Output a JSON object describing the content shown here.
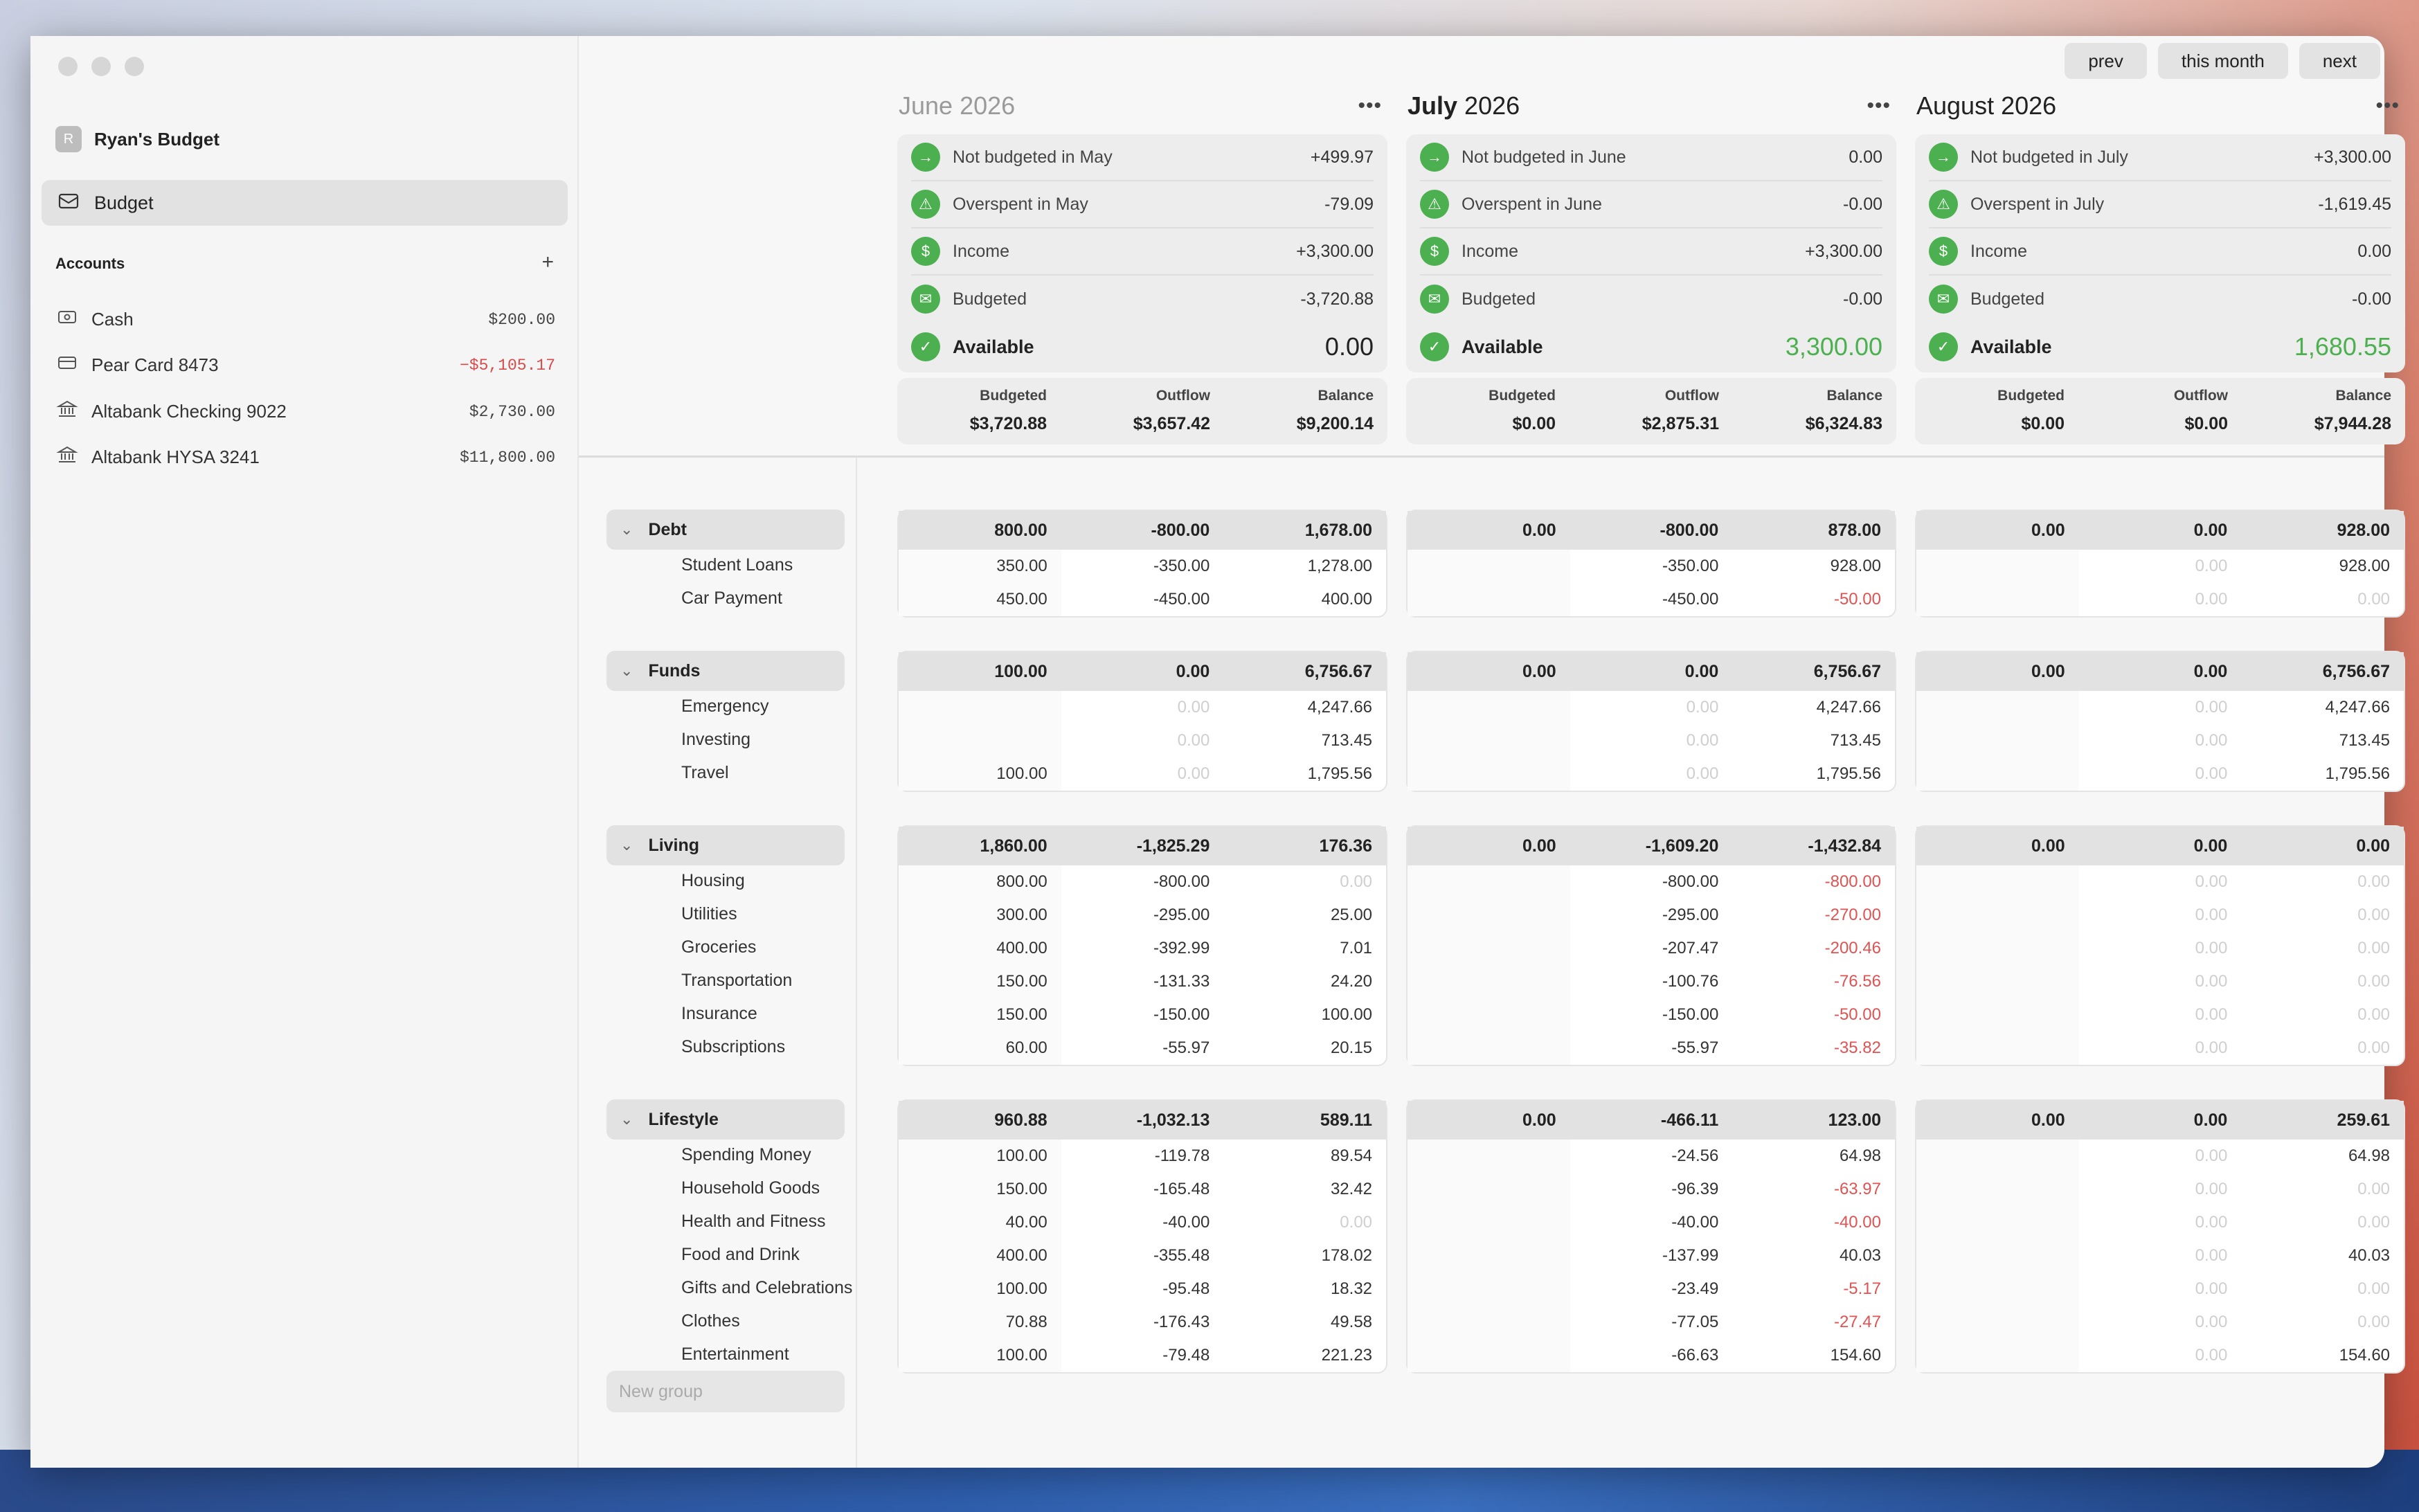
{
  "sidebar": {
    "budget_name": "Ryan's Budget",
    "avatar_letter": "R",
    "nav_budget": "Budget",
    "accounts_label": "Accounts",
    "add_label": "+",
    "accounts": [
      {
        "icon": "cash-icon",
        "name": "Cash",
        "amount": "$200.00",
        "neg": false
      },
      {
        "icon": "credit-card-icon",
        "name": "Pear Card 8473",
        "amount": "−$5,105.17",
        "neg": true
      },
      {
        "icon": "bank-icon",
        "name": "Altabank Checking 9022",
        "amount": "$2,730.00",
        "neg": false
      },
      {
        "icon": "bank-icon",
        "name": "Altabank HYSA 3241",
        "amount": "$11,800.00",
        "neg": false
      }
    ]
  },
  "toolbar": {
    "prev": "prev",
    "this_month": "this month",
    "next": "next"
  },
  "months": [
    {
      "bold": "",
      "rest": "June 2026",
      "past": true,
      "summary": [
        {
          "icon": "arrow-right-icon",
          "label": "Not budgeted in May",
          "value": "+499.97"
        },
        {
          "icon": "warning-icon",
          "label": "Overspent in May",
          "value": "-79.09"
        },
        {
          "icon": "income-icon",
          "label": "Income",
          "value": "+3,300.00"
        },
        {
          "icon": "envelope-icon",
          "label": "Budgeted",
          "value": "-3,720.88"
        }
      ],
      "available_label": "Available",
      "available": "0.00",
      "available_green": false,
      "totals": {
        "budgeted_h": "Budgeted",
        "outflow_h": "Outflow",
        "balance_h": "Balance",
        "budgeted": "$3,720.88",
        "outflow": "$3,657.42",
        "balance": "$9,200.14"
      }
    },
    {
      "bold": "July",
      "rest": " 2026",
      "past": false,
      "summary": [
        {
          "icon": "arrow-right-icon",
          "label": "Not budgeted in June",
          "value": "0.00"
        },
        {
          "icon": "warning-icon",
          "label": "Overspent in June",
          "value": "-0.00"
        },
        {
          "icon": "income-icon",
          "label": "Income",
          "value": "+3,300.00"
        },
        {
          "icon": "envelope-icon",
          "label": "Budgeted",
          "value": "-0.00"
        }
      ],
      "available_label": "Available",
      "available": "3,300.00",
      "available_green": true,
      "totals": {
        "budgeted_h": "Budgeted",
        "outflow_h": "Outflow",
        "balance_h": "Balance",
        "budgeted": "$0.00",
        "outflow": "$2,875.31",
        "balance": "$6,324.83"
      }
    },
    {
      "bold": "",
      "rest": "August 2026",
      "past": false,
      "summary": [
        {
          "icon": "arrow-right-icon",
          "label": "Not budgeted in July",
          "value": "+3,300.00"
        },
        {
          "icon": "warning-icon",
          "label": "Overspent in July",
          "value": "-1,619.45"
        },
        {
          "icon": "income-icon",
          "label": "Income",
          "value": "0.00"
        },
        {
          "icon": "envelope-icon",
          "label": "Budgeted",
          "value": "-0.00"
        }
      ],
      "available_label": "Available",
      "available": "1,680.55",
      "available_green": true,
      "totals": {
        "budgeted_h": "Budgeted",
        "outflow_h": "Outflow",
        "balance_h": "Balance",
        "budgeted": "$0.00",
        "outflow": "$0.00",
        "balance": "$7,944.28"
      }
    }
  ],
  "groups": [
    {
      "name": "Debt",
      "categories": [
        "Student Loans",
        "Car Payment"
      ],
      "months": [
        {
          "head": [
            "800.00",
            "-800.00",
            "1,678.00"
          ],
          "rows": [
            [
              "350.00",
              "-350.00",
              "1,278.00"
            ],
            [
              "450.00",
              "-450.00",
              "400.00"
            ]
          ]
        },
        {
          "head": [
            "0.00",
            "-800.00",
            "878.00"
          ],
          "rows": [
            [
              "",
              "-350.00",
              "928.00"
            ],
            [
              "",
              "-450.00",
              "-50.00"
            ]
          ]
        },
        {
          "head": [
            "0.00",
            "0.00",
            "928.00"
          ],
          "rows": [
            [
              "",
              "0.00",
              "928.00"
            ],
            [
              "",
              "0.00",
              "0.00"
            ]
          ]
        }
      ]
    },
    {
      "name": "Funds",
      "categories": [
        "Emergency",
        "Investing",
        "Travel"
      ],
      "months": [
        {
          "head": [
            "100.00",
            "0.00",
            "6,756.67"
          ],
          "rows": [
            [
              "",
              "0.00",
              "4,247.66"
            ],
            [
              "",
              "0.00",
              "713.45"
            ],
            [
              "100.00",
              "0.00",
              "1,795.56"
            ]
          ]
        },
        {
          "head": [
            "0.00",
            "0.00",
            "6,756.67"
          ],
          "rows": [
            [
              "",
              "0.00",
              "4,247.66"
            ],
            [
              "",
              "0.00",
              "713.45"
            ],
            [
              "",
              "0.00",
              "1,795.56"
            ]
          ]
        },
        {
          "head": [
            "0.00",
            "0.00",
            "6,756.67"
          ],
          "rows": [
            [
              "",
              "0.00",
              "4,247.66"
            ],
            [
              "",
              "0.00",
              "713.45"
            ],
            [
              "",
              "0.00",
              "1,795.56"
            ]
          ]
        }
      ]
    },
    {
      "name": "Living",
      "categories": [
        "Housing",
        "Utilities",
        "Groceries",
        "Transportation",
        "Insurance",
        "Subscriptions"
      ],
      "months": [
        {
          "head": [
            "1,860.00",
            "-1,825.29",
            "176.36"
          ],
          "rows": [
            [
              "800.00",
              "-800.00",
              "0.00"
            ],
            [
              "300.00",
              "-295.00",
              "25.00"
            ],
            [
              "400.00",
              "-392.99",
              "7.01"
            ],
            [
              "150.00",
              "-131.33",
              "24.20"
            ],
            [
              "150.00",
              "-150.00",
              "100.00"
            ],
            [
              "60.00",
              "-55.97",
              "20.15"
            ]
          ]
        },
        {
          "head": [
            "0.00",
            "-1,609.20",
            "-1,432.84"
          ],
          "rows": [
            [
              "",
              "-800.00",
              "-800.00"
            ],
            [
              "",
              "-295.00",
              "-270.00"
            ],
            [
              "",
              "-207.47",
              "-200.46"
            ],
            [
              "",
              "-100.76",
              "-76.56"
            ],
            [
              "",
              "-150.00",
              "-50.00"
            ],
            [
              "",
              "-55.97",
              "-35.82"
            ]
          ]
        },
        {
          "head": [
            "0.00",
            "0.00",
            "0.00"
          ],
          "rows": [
            [
              "",
              "0.00",
              "0.00"
            ],
            [
              "",
              "0.00",
              "0.00"
            ],
            [
              "",
              "0.00",
              "0.00"
            ],
            [
              "",
              "0.00",
              "0.00"
            ],
            [
              "",
              "0.00",
              "0.00"
            ],
            [
              "",
              "0.00",
              "0.00"
            ]
          ]
        }
      ]
    },
    {
      "name": "Lifestyle",
      "categories": [
        "Spending Money",
        "Household Goods",
        "Health and Fitness",
        "Food and Drink",
        "Gifts and Celebrations",
        "Clothes",
        "Entertainment"
      ],
      "months": [
        {
          "head": [
            "960.88",
            "-1,032.13",
            "589.11"
          ],
          "rows": [
            [
              "100.00",
              "-119.78",
              "89.54"
            ],
            [
              "150.00",
              "-165.48",
              "32.42"
            ],
            [
              "40.00",
              "-40.00",
              "0.00"
            ],
            [
              "400.00",
              "-355.48",
              "178.02"
            ],
            [
              "100.00",
              "-95.48",
              "18.32"
            ],
            [
              "70.88",
              "-176.43",
              "49.58"
            ],
            [
              "100.00",
              "-79.48",
              "221.23"
            ]
          ]
        },
        {
          "head": [
            "0.00",
            "-466.11",
            "123.00"
          ],
          "rows": [
            [
              "",
              "-24.56",
              "64.98"
            ],
            [
              "",
              "-96.39",
              "-63.97"
            ],
            [
              "",
              "-40.00",
              "-40.00"
            ],
            [
              "",
              "-137.99",
              "40.03"
            ],
            [
              "",
              "-23.49",
              "-5.17"
            ],
            [
              "",
              "-77.05",
              "-27.47"
            ],
            [
              "",
              "-66.63",
              "154.60"
            ]
          ]
        },
        {
          "head": [
            "0.00",
            "0.00",
            "259.61"
          ],
          "rows": [
            [
              "",
              "0.00",
              "64.98"
            ],
            [
              "",
              "0.00",
              "0.00"
            ],
            [
              "",
              "0.00",
              "0.00"
            ],
            [
              "",
              "0.00",
              "40.03"
            ],
            [
              "",
              "0.00",
              "0.00"
            ],
            [
              "",
              "0.00",
              "0.00"
            ],
            [
              "",
              "0.00",
              "154.60"
            ]
          ]
        }
      ]
    }
  ],
  "new_group_placeholder": "New group"
}
